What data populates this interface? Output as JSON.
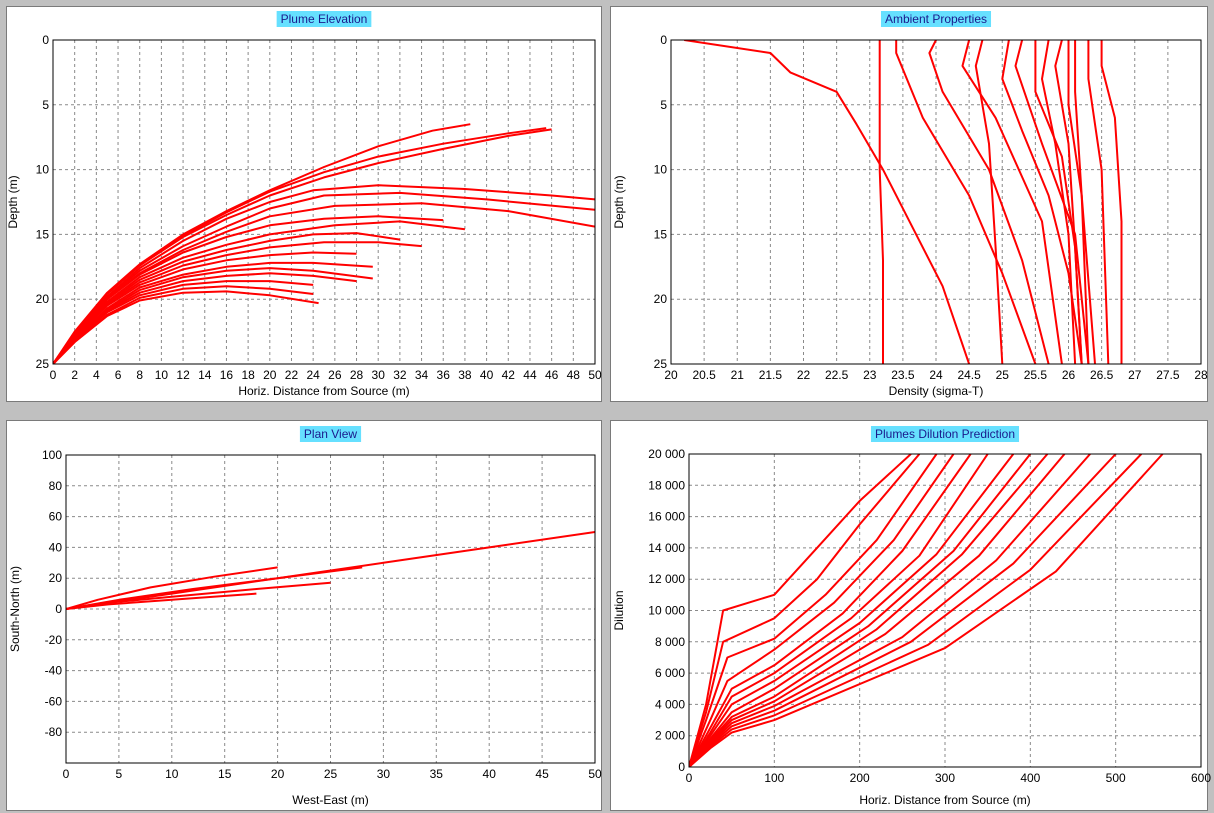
{
  "colors": {
    "series": "#ff0000",
    "title_bg": "#66e0ff",
    "background": "#c0c0c0"
  },
  "chart_data": [
    {
      "id": "plume-elevation",
      "type": "line",
      "title": "Plume Elevation",
      "xlabel": "Horiz. Distance from Source (m)",
      "ylabel": "Depth (m)",
      "xlim": [
        0,
        50
      ],
      "ylim": [
        25,
        0
      ],
      "y_inverted": true,
      "xticks": [
        0,
        2,
        4,
        6,
        8,
        10,
        12,
        14,
        16,
        18,
        20,
        22,
        24,
        26,
        28,
        30,
        32,
        34,
        36,
        38,
        40,
        42,
        44,
        46,
        48,
        50
      ],
      "yticks": [
        0,
        5,
        10,
        15,
        20,
        25
      ],
      "grid": true,
      "series": [
        {
          "x": [
            0,
            2,
            5,
            8,
            12,
            16,
            20,
            25,
            30,
            35,
            38.5
          ],
          "y": [
            25,
            22.5,
            19.5,
            17.3,
            15,
            13.2,
            11.6,
            9.8,
            8.2,
            7,
            6.5
          ]
        },
        {
          "x": [
            0,
            2,
            5,
            8,
            12,
            16,
            20,
            25,
            30,
            36,
            42,
            45.5
          ],
          "y": [
            25,
            22.6,
            19.6,
            17.4,
            15.1,
            13.3,
            11.7,
            10.2,
            9,
            8,
            7.2,
            6.8
          ]
        },
        {
          "x": [
            0,
            2,
            5,
            8,
            12,
            16,
            20,
            25,
            30,
            36,
            42,
            46
          ],
          "y": [
            25,
            22.6,
            19.6,
            17.4,
            15.2,
            13.5,
            12,
            10.6,
            9.5,
            8.4,
            7.4,
            6.9
          ]
        },
        {
          "x": [
            0,
            2,
            5,
            8,
            12,
            16,
            20,
            24,
            30,
            38,
            46,
            50
          ],
          "y": [
            25,
            22.7,
            19.8,
            17.6,
            15.5,
            13.8,
            12.5,
            11.6,
            11.2,
            11.5,
            12,
            12.3
          ]
        },
        {
          "x": [
            0,
            2,
            5,
            8,
            12,
            16,
            20,
            25,
            32,
            40,
            50
          ],
          "y": [
            25,
            22.7,
            19.9,
            17.8,
            15.9,
            14.4,
            13,
            12,
            11.8,
            12.3,
            13.1
          ]
        },
        {
          "x": [
            0,
            2,
            5,
            8,
            12,
            16,
            20,
            26,
            34,
            42,
            50
          ],
          "y": [
            25,
            22.8,
            20,
            18,
            16.2,
            14.8,
            13.6,
            12.8,
            12.6,
            13.2,
            14.4
          ]
        },
        {
          "x": [
            0,
            2,
            5,
            8,
            12,
            16,
            20,
            25,
            30,
            36
          ],
          "y": [
            25,
            22.8,
            20,
            18.1,
            16.4,
            15.2,
            14.3,
            13.8,
            13.6,
            13.9
          ]
        },
        {
          "x": [
            0,
            2,
            5,
            8,
            12,
            16,
            20,
            26,
            32,
            38
          ],
          "y": [
            25,
            22.9,
            20.2,
            18.3,
            16.8,
            15.8,
            15,
            14.3,
            14,
            14.6
          ]
        },
        {
          "x": [
            0,
            2,
            5,
            8,
            12,
            16,
            20,
            24,
            28,
            32
          ],
          "y": [
            25,
            22.9,
            20.3,
            18.5,
            17.1,
            16.2,
            15.5,
            15,
            14.9,
            15.4
          ]
        },
        {
          "x": [
            0,
            2,
            5,
            8,
            12,
            16,
            20,
            25,
            30,
            34
          ],
          "y": [
            25,
            23,
            20.4,
            18.7,
            17.4,
            16.6,
            16,
            15.6,
            15.6,
            15.9
          ]
        },
        {
          "x": [
            0,
            2,
            5,
            8,
            12,
            16,
            20,
            24,
            28
          ],
          "y": [
            25,
            23,
            20.5,
            18.9,
            17.7,
            17,
            16.6,
            16.4,
            16.5
          ]
        },
        {
          "x": [
            0,
            2,
            5,
            8,
            12,
            16,
            20,
            24,
            29.5
          ],
          "y": [
            25,
            23.1,
            20.7,
            19.1,
            18.1,
            17.5,
            17.2,
            17.2,
            17.5
          ]
        },
        {
          "x": [
            0,
            2,
            5,
            8,
            12,
            16,
            20,
            24,
            29.5
          ],
          "y": [
            25,
            23.1,
            20.8,
            19.3,
            18.3,
            17.8,
            17.6,
            17.8,
            18.4
          ]
        },
        {
          "x": [
            0,
            2,
            5,
            8,
            12,
            16,
            20,
            24,
            28
          ],
          "y": [
            25,
            23.2,
            20.9,
            19.5,
            18.6,
            18.2,
            18,
            18.2,
            18.6
          ]
        },
        {
          "x": [
            0,
            2,
            5,
            8,
            12,
            16,
            20,
            24
          ],
          "y": [
            25,
            23.2,
            21,
            19.7,
            18.9,
            18.6,
            18.6,
            18.9
          ]
        },
        {
          "x": [
            0,
            2,
            5,
            8,
            12,
            16,
            20,
            24
          ],
          "y": [
            25,
            23.3,
            21.2,
            19.9,
            19.2,
            19,
            19.2,
            19.6
          ]
        },
        {
          "x": [
            0,
            2,
            5,
            8,
            12,
            16,
            20,
            24.5
          ],
          "y": [
            25,
            23.3,
            21.3,
            20.1,
            19.5,
            19.4,
            19.7,
            20.3
          ]
        }
      ]
    },
    {
      "id": "ambient-properties",
      "type": "line",
      "title": "Ambient Properties",
      "xlabel": "Density (sigma-T)",
      "ylabel": "Depth (m)",
      "xlim": [
        20,
        28
      ],
      "ylim": [
        25,
        0
      ],
      "y_inverted": true,
      "xticks": [
        20,
        20.5,
        21,
        21.5,
        22,
        22.5,
        23,
        23.5,
        24,
        24.5,
        25,
        25.5,
        26,
        26.5,
        27,
        27.5,
        28
      ],
      "yticks": [
        0,
        5,
        10,
        15,
        20,
        25
      ],
      "grid": true,
      "series": [
        {
          "x": [
            20.2,
            21.5,
            21.8,
            22.5,
            22.8,
            23.2,
            23.6,
            24.1,
            24.5
          ],
          "y": [
            0,
            1,
            2.5,
            4,
            6.5,
            10,
            14,
            19,
            25
          ]
        },
        {
          "x": [
            23.15,
            23.15,
            23.2,
            23.2
          ],
          "y": [
            0,
            10,
            17,
            25
          ]
        },
        {
          "x": [
            23.4,
            23.4,
            23.8,
            24.5,
            25,
            25.5
          ],
          "y": [
            0,
            1,
            6,
            12,
            18,
            25
          ]
        },
        {
          "x": [
            24,
            23.9,
            24.1,
            24.8,
            25.3,
            25.7
          ],
          "y": [
            0,
            1,
            4,
            10,
            17,
            25
          ]
        },
        {
          "x": [
            24.5,
            24.4,
            24.9,
            25.6,
            25.9
          ],
          "y": [
            0,
            2,
            6,
            14,
            25
          ]
        },
        {
          "x": [
            24.7,
            24.6,
            24.8,
            24.9,
            25
          ],
          "y": [
            0,
            2,
            8,
            16,
            25
          ]
        },
        {
          "x": [
            25.1,
            25,
            25.3,
            25.7,
            26,
            26.2
          ],
          "y": [
            0,
            3,
            7,
            12,
            18,
            25
          ]
        },
        {
          "x": [
            25.3,
            25.2,
            25.6,
            26.1,
            26.3
          ],
          "y": [
            0,
            2,
            8,
            15,
            25
          ]
        },
        {
          "x": [
            25.5,
            25.5,
            25.9,
            26.1,
            26.2
          ],
          "y": [
            0,
            4,
            9,
            16,
            25
          ]
        },
        {
          "x": [
            25.7,
            25.6,
            25.8,
            26,
            26.1
          ],
          "y": [
            0,
            3,
            8,
            15,
            25
          ]
        },
        {
          "x": [
            25.9,
            25.8,
            26,
            26.1,
            26.2
          ],
          "y": [
            0,
            2,
            8,
            16,
            25
          ]
        },
        {
          "x": [
            26,
            26,
            26.2,
            26.3
          ],
          "y": [
            0,
            5,
            12,
            25
          ]
        },
        {
          "x": [
            26.1,
            26.1,
            26.2,
            26.4
          ],
          "y": [
            0,
            4,
            12,
            25
          ]
        },
        {
          "x": [
            26.3,
            26.3,
            26.5,
            26.6
          ],
          "y": [
            0,
            3,
            10,
            25
          ]
        },
        {
          "x": [
            26.5,
            26.5,
            26.7,
            26.8,
            26.8
          ],
          "y": [
            0,
            2,
            6,
            14,
            25
          ]
        }
      ]
    },
    {
      "id": "plan-view",
      "type": "line",
      "title": "Plan View",
      "xlabel": "West-East (m)",
      "ylabel": "South-North (m)",
      "xlim": [
        0,
        50
      ],
      "ylim": [
        -100,
        100
      ],
      "xticks": [
        0,
        5,
        10,
        15,
        20,
        25,
        30,
        35,
        40,
        45,
        50
      ],
      "yticks": [
        100,
        80,
        60,
        40,
        20,
        0,
        -20,
        -40,
        -60,
        -80
      ],
      "grid": true,
      "series": [
        {
          "x": [
            0,
            10,
            20,
            30,
            40,
            50
          ],
          "y": [
            0,
            10,
            20,
            30,
            40,
            50
          ]
        },
        {
          "x": [
            0,
            3,
            8,
            14,
            20
          ],
          "y": [
            0,
            6,
            14,
            21,
            27
          ]
        },
        {
          "x": [
            0,
            4,
            10,
            18,
            25
          ],
          "y": [
            0,
            4,
            8,
            13,
            17
          ]
        },
        {
          "x": [
            0,
            5,
            12,
            20,
            28
          ],
          "y": [
            0,
            6,
            13,
            20,
            27
          ]
        },
        {
          "x": [
            0,
            4,
            10,
            18
          ],
          "y": [
            0,
            3,
            6,
            10
          ]
        }
      ]
    },
    {
      "id": "plumes-dilution",
      "type": "line",
      "title": "Plumes Dilution Prediction",
      "xlabel": "Horiz. Distance from Source (m)",
      "ylabel": "Dilution",
      "xlim": [
        0,
        600
      ],
      "ylim": [
        0,
        20000
      ],
      "xticks": [
        0,
        100,
        200,
        300,
        400,
        500,
        600
      ],
      "yticks": [
        0,
        2000,
        4000,
        6000,
        8000,
        10000,
        12000,
        14000,
        16000,
        18000,
        20000
      ],
      "ytick_labels": [
        "0",
        "2 000",
        "4 000",
        "6 000",
        "8 000",
        "10 000",
        "12 000",
        "14 000",
        "16 000",
        "18 000",
        "20 000"
      ],
      "grid": true,
      "series": [
        {
          "x": [
            0,
            20,
            40,
            100,
            150,
            200,
            260
          ],
          "y": [
            0,
            4000,
            10000,
            11000,
            14000,
            17000,
            20000
          ]
        },
        {
          "x": [
            0,
            20,
            40,
            100,
            150,
            200,
            270
          ],
          "y": [
            0,
            3500,
            8000,
            9500,
            12000,
            15500,
            20000
          ]
        },
        {
          "x": [
            0,
            20,
            45,
            100,
            160,
            220,
            290
          ],
          "y": [
            0,
            3000,
            7000,
            8200,
            11000,
            14500,
            20000
          ]
        },
        {
          "x": [
            0,
            25,
            45,
            100,
            170,
            240,
            310
          ],
          "y": [
            0,
            3000,
            5500,
            7500,
            10500,
            14500,
            20000
          ]
        },
        {
          "x": [
            0,
            25,
            50,
            100,
            180,
            250,
            330
          ],
          "y": [
            0,
            2500,
            5000,
            6500,
            9800,
            13800,
            20000
          ]
        },
        {
          "x": [
            0,
            25,
            50,
            100,
            190,
            270,
            350
          ],
          "y": [
            0,
            2200,
            4500,
            6000,
            9500,
            13500,
            20000
          ]
        },
        {
          "x": [
            0,
            25,
            50,
            100,
            200,
            290,
            380
          ],
          "y": [
            0,
            2000,
            4000,
            5500,
            9200,
            13600,
            20000
          ]
        },
        {
          "x": [
            0,
            25,
            50,
            100,
            210,
            310,
            400
          ],
          "y": [
            0,
            1800,
            3500,
            5000,
            9000,
            13800,
            20000
          ]
        },
        {
          "x": [
            0,
            25,
            50,
            100,
            220,
            320,
            420
          ],
          "y": [
            0,
            1700,
            3200,
            4500,
            8800,
            13600,
            20000
          ]
        },
        {
          "x": [
            0,
            25,
            50,
            100,
            230,
            340,
            440
          ],
          "y": [
            0,
            1600,
            3000,
            4200,
            8500,
            13500,
            20000
          ]
        },
        {
          "x": [
            0,
            25,
            50,
            100,
            250,
            360,
            470
          ],
          "y": [
            0,
            1500,
            2800,
            3900,
            8300,
            13200,
            20000
          ]
        },
        {
          "x": [
            0,
            25,
            50,
            100,
            260,
            380,
            500
          ],
          "y": [
            0,
            1400,
            2600,
            3600,
            8000,
            13000,
            20000
          ]
        },
        {
          "x": [
            0,
            25,
            50,
            100,
            280,
            400,
            530
          ],
          "y": [
            0,
            1300,
            2400,
            3300,
            7800,
            12600,
            20000
          ]
        },
        {
          "x": [
            0,
            25,
            50,
            100,
            300,
            430,
            555
          ],
          "y": [
            0,
            1200,
            2200,
            3000,
            7600,
            12500,
            20000
          ]
        }
      ]
    }
  ]
}
